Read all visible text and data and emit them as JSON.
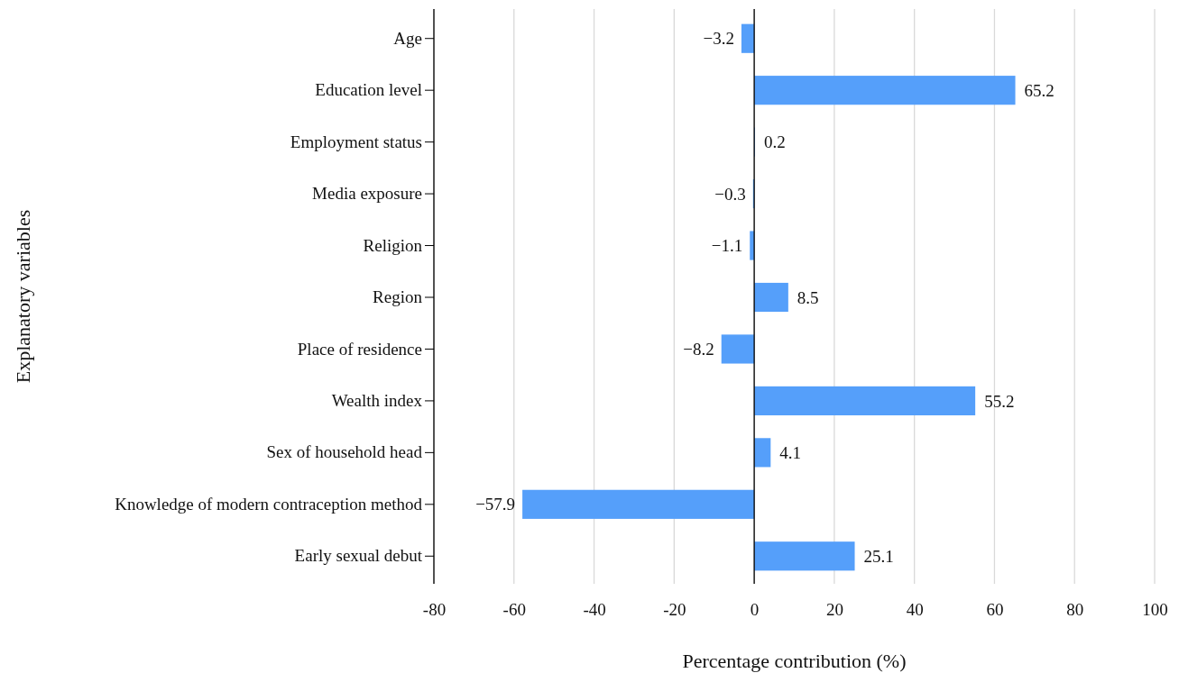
{
  "chart_data": {
    "type": "bar",
    "orientation": "horizontal",
    "xlabel": "Percentage contribution (%)",
    "ylabel": "Explanatory variables",
    "categories": [
      "Age",
      "Education level",
      "Employment status",
      "Media exposure",
      "Religion",
      "Region",
      "Place of residence",
      "Wealth index",
      "Sex of household head",
      "Knowledge of modern contraception method",
      "Early sexual debut"
    ],
    "values": [
      -3.2,
      65.2,
      0.2,
      -0.3,
      -1.1,
      8.5,
      -8.2,
      55.2,
      4.1,
      -57.9,
      25.1
    ],
    "value_labels": [
      "−3.2",
      "65.2",
      "0.2",
      "−0.3",
      "−1.1",
      "8.5",
      "−8.2",
      "55.2",
      "4.1",
      "−57.9",
      "25.1"
    ],
    "color": "#559ffa",
    "xlim": [
      -80,
      100
    ],
    "xticks": [
      -80,
      -60,
      -40,
      -20,
      0,
      20,
      40,
      60,
      80,
      100
    ],
    "grid": "x"
  }
}
